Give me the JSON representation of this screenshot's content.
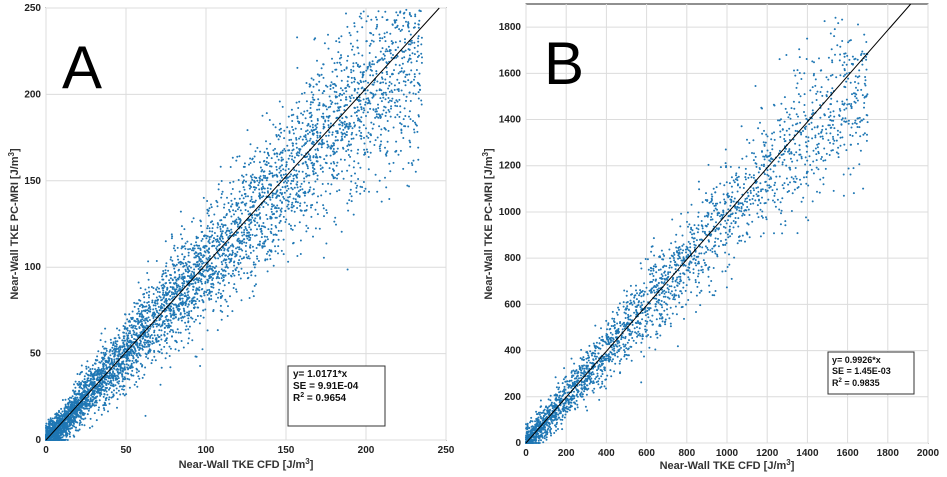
{
  "chart_data": [
    {
      "type": "scatter",
      "panel_label": "A",
      "xlabel": "Near-Wall TKE CFD [J/m",
      "ylabel": "Near-Wall TKE PC-MRI [J/m",
      "unit_exp": "3",
      "xlim": [
        0,
        250
      ],
      "ylim": [
        0,
        250
      ],
      "xticks": [
        0,
        50,
        100,
        150,
        200,
        250
      ],
      "yticks": [
        0,
        50,
        100,
        150,
        200,
        250
      ],
      "grid": true,
      "fit": {
        "slope": 1.0171
      },
      "stats": {
        "line1": "y= 1.0171*x",
        "line2": "SE = 9.91E-04",
        "line3_prefix": "R",
        "line3_exp": "2",
        "line3_suffix": " = 0.9654"
      },
      "marker_color": "#1f77b4",
      "line_color": "#000000",
      "series_trend": [
        [
          0,
          0
        ],
        [
          10,
          8
        ],
        [
          25,
          26
        ],
        [
          50,
          50
        ],
        [
          75,
          78
        ],
        [
          100,
          100
        ],
        [
          125,
          125
        ],
        [
          150,
          148
        ],
        [
          175,
          175
        ],
        [
          200,
          200
        ],
        [
          225,
          220
        ],
        [
          235,
          225
        ]
      ]
    },
    {
      "type": "scatter",
      "panel_label": "B",
      "xlabel": "Near-Wall TKE CFD [J/m",
      "ylabel": "Near-Wall TKE PC-MRI [J/m",
      "unit_exp": "3",
      "xlim": [
        0,
        2000
      ],
      "ylim": [
        0,
        1900
      ],
      "xticks": [
        0,
        200,
        400,
        600,
        800,
        1000,
        1200,
        1400,
        1600,
        1800,
        2000
      ],
      "yticks": [
        0,
        200,
        400,
        600,
        800,
        1000,
        1200,
        1400,
        1600,
        1800
      ],
      "grid": true,
      "fit": {
        "slope": 0.9926
      },
      "stats": {
        "line1": "y= 0.9926*x",
        "line2": "SE = 1.45E-03",
        "line3_prefix": "R",
        "line3_exp": "2",
        "line3_suffix": " = 0.9835"
      },
      "marker_color": "#1f77b4",
      "line_color": "#000000",
      "series_trend": [
        [
          0,
          0
        ],
        [
          100,
          100
        ],
        [
          200,
          195
        ],
        [
          400,
          400
        ],
        [
          600,
          600
        ],
        [
          800,
          790
        ],
        [
          1000,
          990
        ],
        [
          1200,
          1180
        ],
        [
          1400,
          1350
        ],
        [
          1600,
          1480
        ],
        [
          1700,
          1500
        ]
      ]
    }
  ]
}
